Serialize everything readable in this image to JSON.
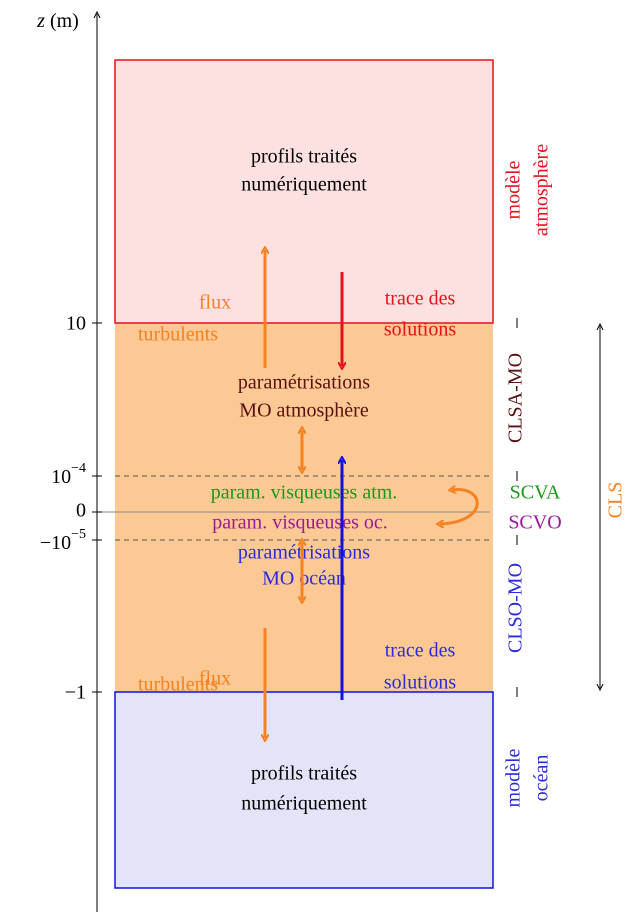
{
  "axis": {
    "var": "z",
    "unit": "(m)",
    "ticks": [
      {
        "text": "10"
      },
      {
        "base": "10",
        "exp": "−4"
      },
      {
        "text": "0"
      },
      {
        "base": "−10",
        "exp": "−5"
      },
      {
        "text": "−1"
      }
    ]
  },
  "atmosphere": {
    "profiles": [
      "profils traités",
      "numériquement"
    ],
    "label": [
      "modèle",
      "atmosphère"
    ],
    "flux": [
      "flux",
      "turbulents"
    ],
    "trace": [
      "trace des",
      "solutions"
    ]
  },
  "clsa": {
    "params": [
      "paramétrisations",
      "MO atmosphère"
    ],
    "label": "CLSA-MO"
  },
  "viscous": {
    "atm": "param. visqueuses atm.",
    "oc": "param. visqueuses oc.",
    "scva": "SCVA",
    "scvo": "SCVO"
  },
  "clso": {
    "params": [
      "paramétrisations",
      "MO océan"
    ],
    "label": "CLSO-MO"
  },
  "cls": "CLS",
  "ocean": {
    "profiles": [
      "profils traités",
      "numériquement"
    ],
    "label": [
      "modèle",
      "océan"
    ],
    "flux": [
      "flux",
      "turbulents"
    ],
    "trace": [
      "trace des",
      "solutions"
    ]
  }
}
